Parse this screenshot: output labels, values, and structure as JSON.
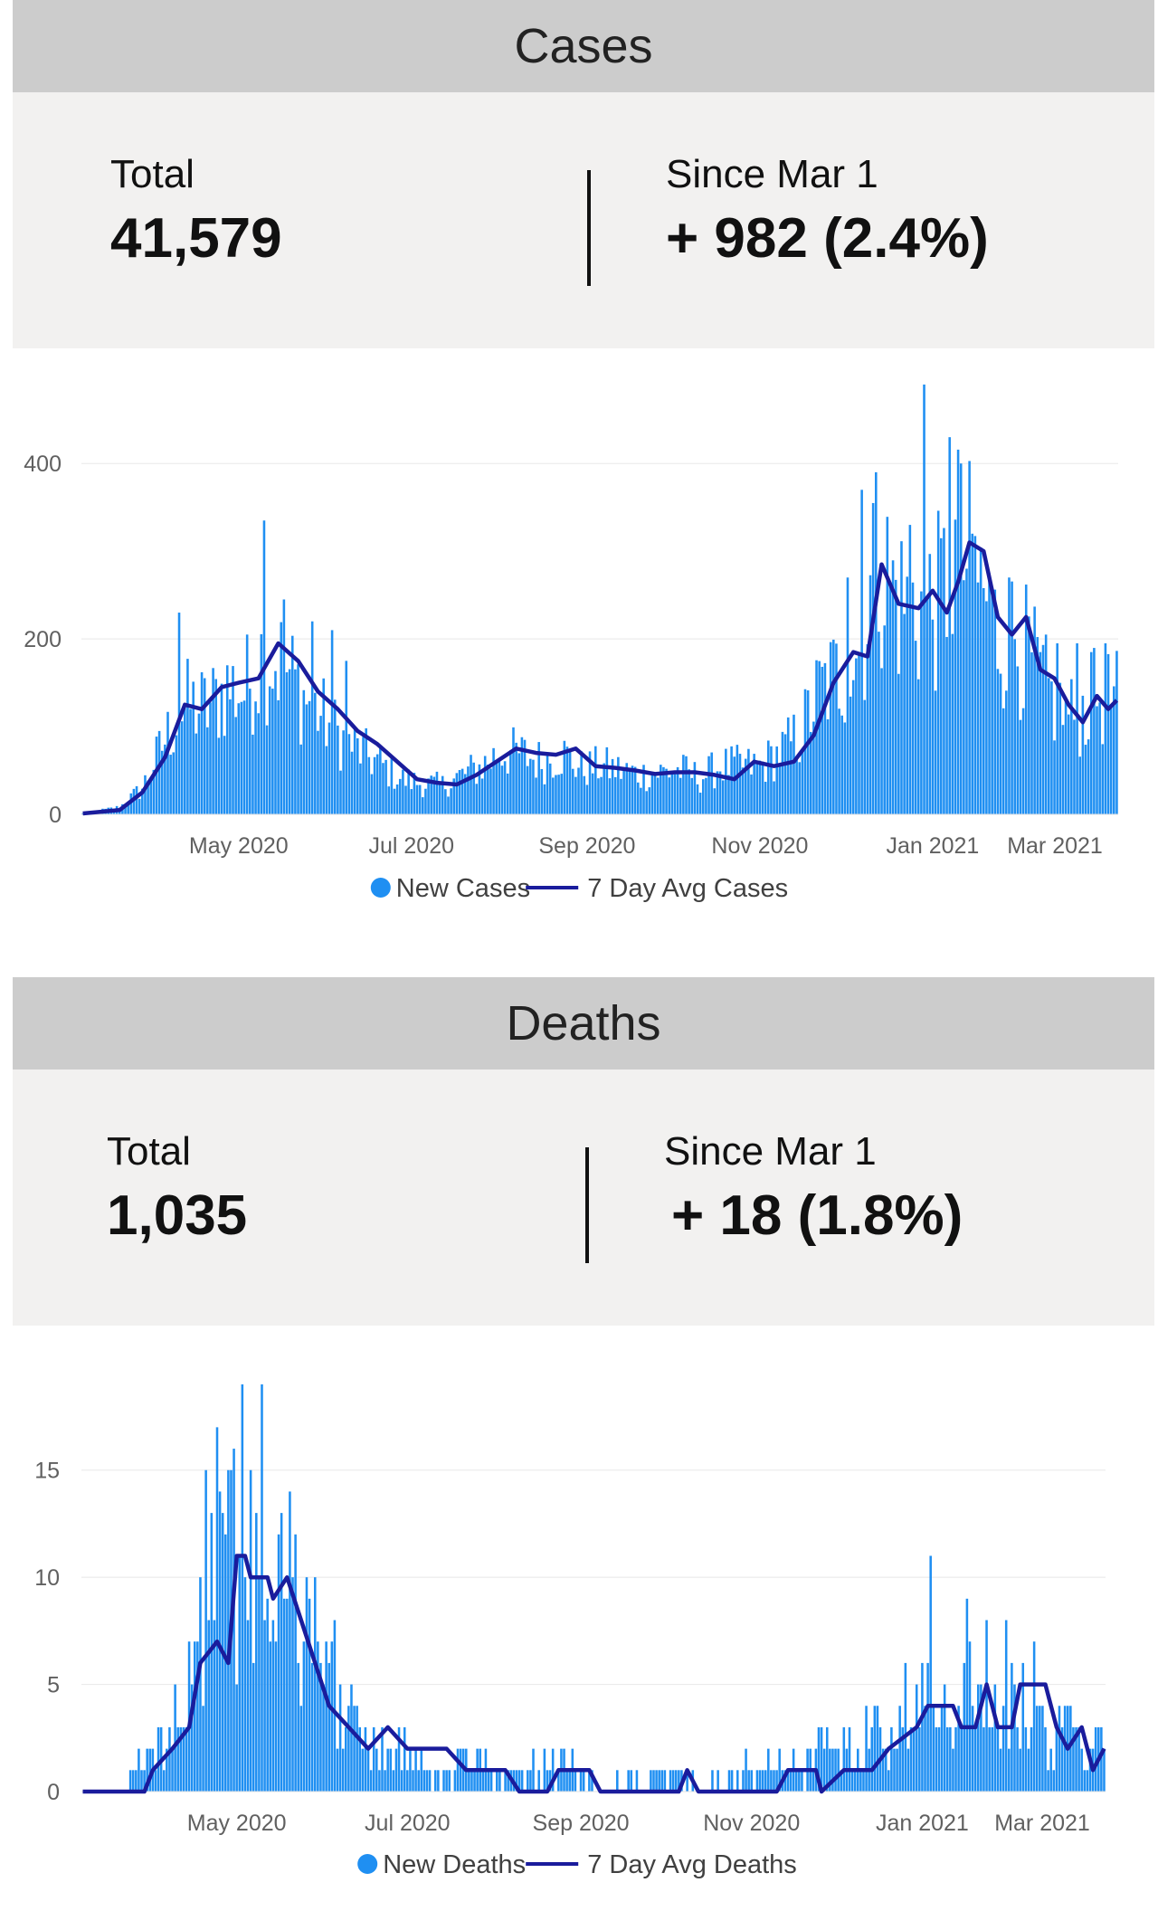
{
  "cases": {
    "header": "Cases",
    "total_label": "Total",
    "total_value": "41,579",
    "since_label": "Since Mar 1",
    "since_value": "+ 982 (2.4%)"
  },
  "deaths": {
    "header": "Deaths",
    "total_label": "Total",
    "total_value": "1,035",
    "since_label": "Since Mar 1",
    "since_value": "+ 18 (1.8%)"
  },
  "colors": {
    "bar": "#1f8ff2",
    "avg": "#1a1c9c",
    "grid": "#e8e8e8"
  },
  "chart_data": [
    {
      "type": "bar",
      "id": "cases-chart",
      "x_range": [
        "2020-03-07",
        "2021-03-07"
      ],
      "x_ticks": [
        "May 2020",
        "Jul 2020",
        "Sep 2020",
        "Nov 2020",
        "Jan 2021",
        "Mar 2021"
      ],
      "y_ticks": [
        0,
        200,
        400
      ],
      "ylim": [
        0,
        490
      ],
      "grid": true,
      "legend": {
        "position": "bottom-center",
        "bar_label": "New Cases",
        "line_label": "7 Day Avg Cases"
      },
      "series": [
        {
          "name": "New Cases",
          "kind": "bar",
          "anchors": [
            [
              "2020-03-07",
              1
            ],
            [
              "2020-03-20",
              8
            ],
            [
              "2020-03-28",
              30
            ],
            [
              "2020-04-05",
              85
            ],
            [
              "2020-04-12",
              125
            ],
            [
              "2020-04-20",
              120
            ],
            [
              "2020-04-27",
              145
            ],
            [
              "2020-05-03",
              140
            ],
            [
              "2020-05-10",
              185
            ],
            [
              "2020-05-17",
              170
            ],
            [
              "2020-05-24",
              135
            ],
            [
              "2020-05-31",
              110
            ],
            [
              "2020-06-07",
              85
            ],
            [
              "2020-06-14",
              70
            ],
            [
              "2020-06-21",
              55
            ],
            [
              "2020-06-28",
              40
            ],
            [
              "2020-07-05",
              35
            ],
            [
              "2020-07-12",
              33
            ],
            [
              "2020-07-19",
              45
            ],
            [
              "2020-07-26",
              55
            ],
            [
              "2020-08-02",
              72
            ],
            [
              "2020-08-09",
              68
            ],
            [
              "2020-08-16",
              60
            ],
            [
              "2020-08-23",
              70
            ],
            [
              "2020-08-30",
              52
            ],
            [
              "2020-09-06",
              55
            ],
            [
              "2020-09-13",
              50
            ],
            [
              "2020-09-20",
              45
            ],
            [
              "2020-09-27",
              48
            ],
            [
              "2020-10-04",
              50
            ],
            [
              "2020-10-11",
              42
            ],
            [
              "2020-10-18",
              55
            ],
            [
              "2020-10-25",
              55
            ],
            [
              "2020-11-01",
              55
            ],
            [
              "2020-11-08",
              70
            ],
            [
              "2020-11-15",
              90
            ],
            [
              "2020-11-22",
              140
            ],
            [
              "2020-11-29",
              160
            ],
            [
              "2020-12-06",
              185
            ],
            [
              "2020-12-13",
              290
            ],
            [
              "2020-12-20",
              245
            ],
            [
              "2020-12-27",
              235
            ],
            [
              "2021-01-03",
              240
            ],
            [
              "2021-01-10",
              300
            ],
            [
              "2021-01-17",
              270
            ],
            [
              "2021-01-24",
              205
            ],
            [
              "2021-01-31",
              200
            ],
            [
              "2021-02-07",
              160
            ],
            [
              "2021-02-14",
              120
            ],
            [
              "2021-02-21",
              110
            ],
            [
              "2021-02-28",
              135
            ],
            [
              "2021-03-07",
              130
            ]
          ],
          "spikes": [
            [
              "2020-04-10",
              230
            ],
            [
              "2020-05-10",
              335
            ],
            [
              "2020-05-17",
              245
            ],
            [
              "2020-05-27",
              220
            ],
            [
              "2020-06-03",
              210
            ],
            [
              "2020-06-08",
              175
            ],
            [
              "2020-12-02",
              270
            ],
            [
              "2020-12-07",
              370
            ],
            [
              "2020-12-12",
              390
            ],
            [
              "2020-12-24",
              330
            ],
            [
              "2020-12-29",
              490
            ],
            [
              "2021-01-07",
              430
            ],
            [
              "2021-01-11",
              400
            ],
            [
              "2021-01-15",
              320
            ],
            [
              "2021-01-22",
              255
            ],
            [
              "2021-01-28",
              270
            ],
            [
              "2021-02-14",
              195
            ],
            [
              "2021-02-21",
              195
            ],
            [
              "2021-02-26",
              185
            ],
            [
              "2021-03-03",
              195
            ]
          ]
        },
        {
          "name": "7 Day Avg Cases",
          "kind": "line",
          "points": [
            [
              "2020-03-07",
              1
            ],
            [
              "2020-03-20",
              5
            ],
            [
              "2020-03-28",
              25
            ],
            [
              "2020-04-05",
              65
            ],
            [
              "2020-04-12",
              125
            ],
            [
              "2020-04-18",
              120
            ],
            [
              "2020-04-25",
              145
            ],
            [
              "2020-05-01",
              150
            ],
            [
              "2020-05-08",
              155
            ],
            [
              "2020-05-15",
              195
            ],
            [
              "2020-05-22",
              175
            ],
            [
              "2020-05-29",
              140
            ],
            [
              "2020-06-05",
              120
            ],
            [
              "2020-06-12",
              95
            ],
            [
              "2020-06-19",
              80
            ],
            [
              "2020-06-26",
              60
            ],
            [
              "2020-07-03",
              40
            ],
            [
              "2020-07-10",
              36
            ],
            [
              "2020-07-17",
              34
            ],
            [
              "2020-07-24",
              45
            ],
            [
              "2020-07-31",
              60
            ],
            [
              "2020-08-07",
              75
            ],
            [
              "2020-08-14",
              70
            ],
            [
              "2020-08-21",
              68
            ],
            [
              "2020-08-28",
              75
            ],
            [
              "2020-09-04",
              55
            ],
            [
              "2020-09-11",
              53
            ],
            [
              "2020-09-18",
              50
            ],
            [
              "2020-09-25",
              46
            ],
            [
              "2020-10-02",
              48
            ],
            [
              "2020-10-09",
              48
            ],
            [
              "2020-10-16",
              45
            ],
            [
              "2020-10-23",
              40
            ],
            [
              "2020-10-30",
              60
            ],
            [
              "2020-11-06",
              55
            ],
            [
              "2020-11-13",
              60
            ],
            [
              "2020-11-20",
              90
            ],
            [
              "2020-11-27",
              150
            ],
            [
              "2020-12-04",
              185
            ],
            [
              "2020-12-09",
              180
            ],
            [
              "2020-12-14",
              285
            ],
            [
              "2020-12-20",
              240
            ],
            [
              "2020-12-27",
              235
            ],
            [
              "2021-01-01",
              255
            ],
            [
              "2021-01-06",
              230
            ],
            [
              "2021-01-10",
              265
            ],
            [
              "2021-01-14",
              310
            ],
            [
              "2021-01-19",
              300
            ],
            [
              "2021-01-24",
              225
            ],
            [
              "2021-01-29",
              205
            ],
            [
              "2021-02-03",
              225
            ],
            [
              "2021-02-08",
              165
            ],
            [
              "2021-02-13",
              155
            ],
            [
              "2021-02-18",
              125
            ],
            [
              "2021-02-23",
              105
            ],
            [
              "2021-02-28",
              135
            ],
            [
              "2021-03-04",
              120
            ],
            [
              "2021-03-07",
              130
            ]
          ]
        }
      ]
    },
    {
      "type": "bar",
      "id": "deaths-chart",
      "x_range": [
        "2020-03-07",
        "2021-03-07"
      ],
      "x_ticks": [
        "May 2020",
        "Jul 2020",
        "Sep 2020",
        "Nov 2020",
        "Jan 2021",
        "Mar 2021"
      ],
      "y_ticks": [
        0,
        5,
        10,
        15
      ],
      "ylim": [
        0,
        19
      ],
      "grid": true,
      "legend": {
        "position": "bottom-center",
        "bar_label": "New Deaths",
        "line_label": "7 Day Avg Deaths"
      },
      "series": [
        {
          "name": "New Deaths",
          "kind": "bar",
          "anchors": [
            [
              "2020-03-07",
              0
            ],
            [
              "2020-03-22",
              0
            ],
            [
              "2020-03-25",
              1
            ],
            [
              "2020-04-02",
              2
            ],
            [
              "2020-04-10",
              4
            ],
            [
              "2020-04-17",
              7
            ],
            [
              "2020-04-24",
              11
            ],
            [
              "2020-05-01",
              12
            ],
            [
              "2020-05-08",
              11
            ],
            [
              "2020-05-15",
              10
            ],
            [
              "2020-05-22",
              9
            ],
            [
              "2020-05-29",
              7
            ],
            [
              "2020-06-05",
              5
            ],
            [
              "2020-06-12",
              3
            ],
            [
              "2020-06-19",
              2
            ],
            [
              "2020-06-26",
              2
            ],
            [
              "2020-07-03",
              2
            ],
            [
              "2020-07-10",
              1
            ],
            [
              "2020-07-17",
              1
            ],
            [
              "2020-07-24",
              1
            ],
            [
              "2020-08-01",
              1
            ],
            [
              "2020-08-15",
              1
            ],
            [
              "2020-09-01",
              1
            ],
            [
              "2020-09-15",
              0
            ],
            [
              "2020-10-01",
              1
            ],
            [
              "2020-10-15",
              0
            ],
            [
              "2020-11-01",
              1
            ],
            [
              "2020-11-15",
              1
            ],
            [
              "2020-12-01",
              2
            ],
            [
              "2020-12-15",
              3
            ],
            [
              "2021-01-01",
              4
            ],
            [
              "2021-01-15",
              4
            ],
            [
              "2021-02-01",
              4
            ],
            [
              "2021-02-15",
              3
            ],
            [
              "2021-03-07",
              2
            ]
          ],
          "spikes": [
            [
              "2020-04-20",
              15
            ],
            [
              "2020-04-26",
              13
            ],
            [
              "2020-04-29",
              15
            ],
            [
              "2020-05-03",
              19
            ],
            [
              "2020-05-06",
              15
            ],
            [
              "2020-05-10",
              19
            ],
            [
              "2020-05-17",
              13
            ],
            [
              "2020-05-26",
              10
            ],
            [
              "2020-06-05",
              8
            ],
            [
              "2021-01-04",
              11
            ],
            [
              "2021-01-17",
              9
            ],
            [
              "2021-01-24",
              8
            ],
            [
              "2021-01-31",
              8
            ],
            [
              "2021-02-10",
              7
            ]
          ]
        },
        {
          "name": "7 Day Avg Deaths",
          "kind": "line",
          "points": [
            [
              "2020-03-07",
              0
            ],
            [
              "2020-03-29",
              0
            ],
            [
              "2020-04-01",
              1
            ],
            [
              "2020-04-08",
              2
            ],
            [
              "2020-04-14",
              3
            ],
            [
              "2020-04-18",
              6
            ],
            [
              "2020-04-24",
              7
            ],
            [
              "2020-04-28",
              6
            ],
            [
              "2020-05-01",
              11
            ],
            [
              "2020-05-04",
              11
            ],
            [
              "2020-05-06",
              10
            ],
            [
              "2020-05-09",
              10
            ],
            [
              "2020-05-12",
              10
            ],
            [
              "2020-05-14",
              9
            ],
            [
              "2020-05-19",
              10
            ],
            [
              "2020-05-24",
              8
            ],
            [
              "2020-05-29",
              6
            ],
            [
              "2020-06-03",
              4
            ],
            [
              "2020-06-10",
              3
            ],
            [
              "2020-06-17",
              2
            ],
            [
              "2020-06-24",
              3
            ],
            [
              "2020-07-01",
              2
            ],
            [
              "2020-07-15",
              2
            ],
            [
              "2020-07-22",
              1
            ],
            [
              "2020-08-05",
              1
            ],
            [
              "2020-08-10",
              0
            ],
            [
              "2020-08-20",
              0
            ],
            [
              "2020-08-24",
              1
            ],
            [
              "2020-09-04",
              1
            ],
            [
              "2020-09-08",
              0
            ],
            [
              "2020-10-06",
              0
            ],
            [
              "2020-10-09",
              1
            ],
            [
              "2020-10-13",
              0
            ],
            [
              "2020-11-10",
              0
            ],
            [
              "2020-11-14",
              1
            ],
            [
              "2020-11-24",
              1
            ],
            [
              "2020-11-26",
              0
            ],
            [
              "2020-12-04",
              1
            ],
            [
              "2020-12-14",
              1
            ],
            [
              "2020-12-20",
              2
            ],
            [
              "2020-12-30",
              3
            ],
            [
              "2021-01-03",
              4
            ],
            [
              "2021-01-12",
              4
            ],
            [
              "2021-01-15",
              3
            ],
            [
              "2021-01-20",
              3
            ],
            [
              "2021-01-24",
              5
            ],
            [
              "2021-01-28",
              3
            ],
            [
              "2021-02-02",
              3
            ],
            [
              "2021-02-05",
              5
            ],
            [
              "2021-02-14",
              5
            ],
            [
              "2021-02-18",
              3
            ],
            [
              "2021-02-22",
              2
            ],
            [
              "2021-02-27",
              3
            ],
            [
              "2021-03-03",
              1
            ],
            [
              "2021-03-07",
              2
            ]
          ]
        }
      ]
    }
  ]
}
